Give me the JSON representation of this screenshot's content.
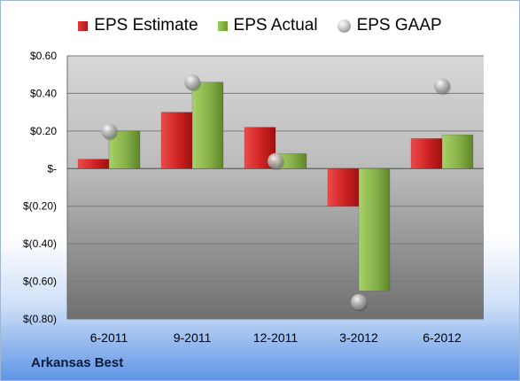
{
  "legend": {
    "estimate_label": "EPS Estimate",
    "actual_label": "EPS Actual",
    "gaap_label": "EPS GAAP"
  },
  "company": "Arkansas Best",
  "colors": {
    "estimate": "#c82020",
    "actual": "#86b04a",
    "gaap": "#a8a8a8"
  },
  "chart_data": {
    "type": "bar",
    "categories": [
      "6-2011",
      "9-2011",
      "12-2011",
      "3-2012",
      "6-2012"
    ],
    "series": [
      {
        "name": "EPS Estimate",
        "values": [
          0.05,
          0.3,
          0.22,
          -0.2,
          0.16
        ]
      },
      {
        "name": "EPS Actual",
        "values": [
          0.2,
          0.46,
          0.08,
          -0.65,
          0.18
        ]
      },
      {
        "name": "EPS GAAP",
        "type": "scatter",
        "values": [
          0.2,
          0.46,
          0.04,
          -0.71,
          0.44
        ]
      }
    ],
    "ylim": [
      -0.8,
      0.6
    ],
    "yticks": [
      0.6,
      0.4,
      0.2,
      0,
      -0.2,
      -0.4,
      -0.6,
      -0.8
    ],
    "ytick_labels": [
      "$0.60",
      "$0.40",
      "$0.20",
      "$-",
      "$(0.20)",
      "$(0.40)",
      "$(0.60)",
      "$(0.80)"
    ],
    "grid": true,
    "legend_position": "top"
  }
}
